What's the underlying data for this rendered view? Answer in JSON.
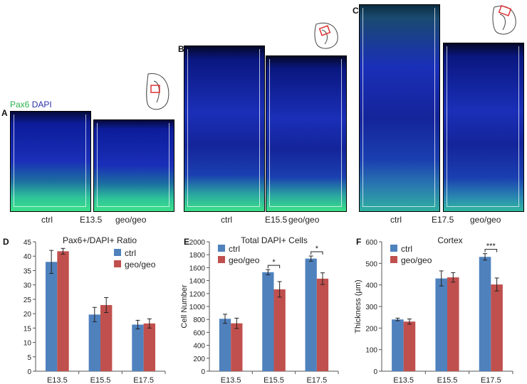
{
  "stain_label": {
    "part1": "Pax6",
    "part2": "DAPI"
  },
  "panels": {
    "A": {
      "letter": "A",
      "left_caption": "ctrl",
      "age": "E13.5",
      "right_caption": "geo/geo"
    },
    "B": {
      "letter": "B",
      "left_caption": "ctrl",
      "age": "E15.5",
      "right_caption": "geo/geo"
    },
    "C": {
      "letter": "C",
      "left_caption": "ctrl",
      "age": "E17.5",
      "right_caption": "geo/geo"
    }
  },
  "legend": {
    "ctrl": "ctrl",
    "geo": "geo/geo"
  },
  "colors": {
    "ctrl": "#4f81bd",
    "geo": "#c0504d",
    "dapi": "#1a2fb8",
    "pax6": "#3bd07a"
  },
  "chart_data": [
    {
      "panel": "D",
      "type": "bar",
      "title": "Pax6+/DAPI+ Ratio",
      "xlabel": "",
      "ylabel": "",
      "categories": [
        "E13.5",
        "E15.5",
        "E17.5"
      ],
      "ylim": [
        0,
        45
      ],
      "yticks": [
        0,
        5,
        10,
        15,
        20,
        25,
        30,
        35,
        40,
        45
      ],
      "series": [
        {
          "name": "ctrl",
          "values": [
            38,
            19.7,
            16.2
          ],
          "errors": [
            4,
            2.5,
            1.5
          ]
        },
        {
          "name": "geo/geo",
          "values": [
            41.7,
            23,
            16.6
          ],
          "errors": [
            1,
            2.6,
            1.6
          ]
        }
      ],
      "significance": []
    },
    {
      "panel": "E",
      "type": "bar",
      "title": "Total DAPI+ Cells",
      "xlabel": "",
      "ylabel": "Cell Number",
      "categories": [
        "E13.5",
        "E15.5",
        "E17.5"
      ],
      "ylim": [
        0,
        2000
      ],
      "yticks": [
        0,
        200,
        400,
        600,
        800,
        1000,
        1200,
        1400,
        1600,
        1800,
        2000
      ],
      "series": [
        {
          "name": "ctrl",
          "values": [
            810,
            1530,
            1740
          ],
          "errors": [
            70,
            40,
            40
          ]
        },
        {
          "name": "geo/geo",
          "values": [
            740,
            1265,
            1430
          ],
          "errors": [
            80,
            120,
            90
          ]
        }
      ],
      "significance": [
        {
          "category": "E15.5",
          "mark": "*"
        },
        {
          "category": "E17.5",
          "mark": "*"
        }
      ]
    },
    {
      "panel": "F",
      "type": "bar",
      "title": "Cortex",
      "xlabel": "",
      "ylabel": "Thickness (µm)",
      "categories": [
        "E13.5",
        "E15.5",
        "E17.5"
      ],
      "ylim": [
        0,
        600
      ],
      "yticks": [
        0,
        100,
        200,
        300,
        400,
        500,
        600
      ],
      "series": [
        {
          "name": "ctrl",
          "values": [
            240,
            430,
            530
          ],
          "errors": [
            6,
            35,
            15
          ]
        },
        {
          "name": "geo/geo",
          "values": [
            230,
            435,
            402
          ],
          "errors": [
            12,
            22,
            30
          ]
        }
      ],
      "significance": [
        {
          "category": "E17.5",
          "mark": "***"
        }
      ]
    }
  ]
}
